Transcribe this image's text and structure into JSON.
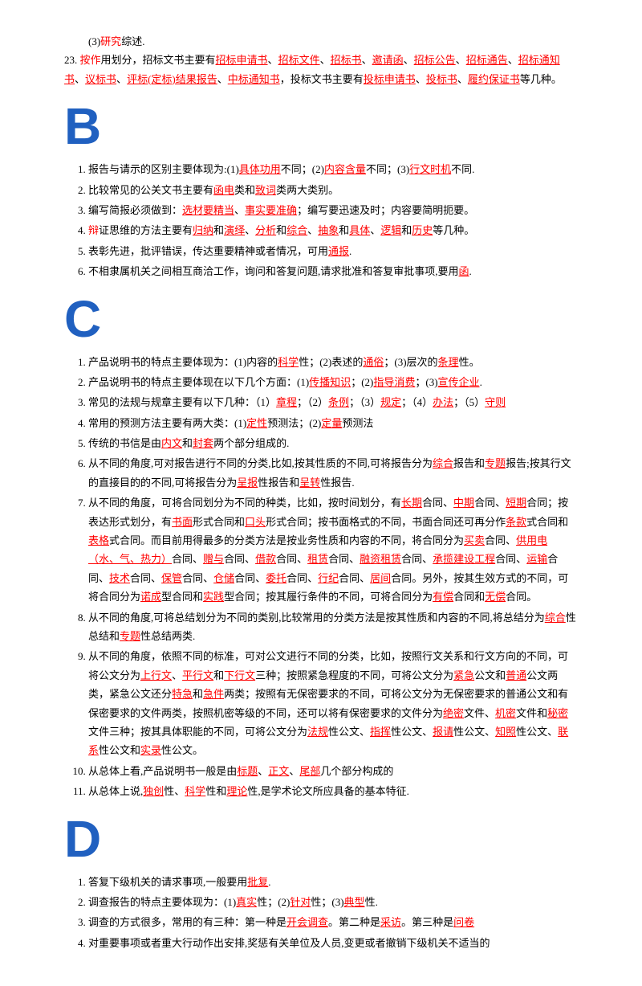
{
  "pre": {
    "line1_prefix": "(3)",
    "line1_r": "研究",
    "line1_suffix": "综述.",
    "item23_num": "23.",
    "item23_p1": "按作",
    "item23_p2": "用划分，招标文书主要有",
    "item23_r1": "招标申请书",
    "sep": "、",
    "item23_r2": "招标文件",
    "item23_r3": "招标书",
    "item23_r4": "邀请函",
    "item23_r5": "招标公告",
    "item23_r6": "招标通告",
    "item23_r7": "招标通知书",
    "item23_r8": "议标书",
    "item23_r9": "评标(定标)结果报告",
    "item23_r10": "中标通知书",
    "item23_p3": "，投标文书主要有",
    "item23_r11": "投标申请书",
    "item23_r12": "投标书",
    "item23_r13": "履约保证书",
    "item23_p4": "等几种。"
  },
  "B": {
    "letter": "B",
    "i1_a": "报告与请示的区别主要体现为:(1)",
    "i1_r1": "具体功用",
    "i1_b": "不同；(2)",
    "i1_r2": "内容含量",
    "i1_c": "不同；(3)",
    "i1_r3": "行文时机",
    "i1_d": "不同.",
    "i2_a": "比较常见的公关文书主要有",
    "i2_r1": "函电",
    "i2_b": "类和",
    "i2_r2": "致词",
    "i2_c": "类两大类别。",
    "i3_a": "编写简报必须做到：",
    "i3_r1": "选材要精当",
    "i3_r2": "事实要准确",
    "i3_b": "；编写要迅速及时；内容要简明扼要。",
    "i4_a": "辩",
    "i4_b": "证思维的方法主要有",
    "i4_r1": "归纳",
    "i4_c": "和",
    "i4_r2": "演绎",
    "i4_r3": "分析",
    "i4_r4": "综合",
    "i4_r5": "抽象",
    "i4_r6": "具体",
    "i4_r7": "逻辑",
    "i4_r8": "历史",
    "i4_d": "等几种。",
    "i5_a": "表彰先进，批评错误，传达重要精神或者情况，可用",
    "i5_r1": "通报",
    "i5_b": ".",
    "i6_a": "不相隶属机关之间相互商洽工作，询问和答复问题,请求批准和答复审批事项,要用",
    "i6_r1": "函",
    "i6_b": "."
  },
  "C": {
    "letter": "C",
    "i1_a": "产品说明书的特点主要体现为：(1)内容的",
    "i1_r1": "科学",
    "i1_b": "性；(2)表述的",
    "i1_r2": "通俗",
    "i1_c": "；(3)层次的",
    "i1_r3": "条理",
    "i1_d": "性。",
    "i2_a": "产品说明书的特点主要体现在以下几个方面：(1)",
    "i2_r1": "传播知识",
    "i2_b": "；(2)",
    "i2_r2": "指导消费",
    "i2_c": "；(3)",
    "i2_r3": "宣传企业",
    "i2_d": ".",
    "i3_a": "常见的法规与规章主要有以下几种：（1）",
    "i3_r1": "章程",
    "i3_b": "；（2）",
    "i3_r2": "条例",
    "i3_c": "；（3）",
    "i3_r3": "规定",
    "i3_d": "；（4）",
    "i3_r4": "办法",
    "i3_e": "；（5）",
    "i3_r5": "守则",
    "i3_f": "",
    "i4_a": "常用的预测方法主要有两大类：(1)",
    "i4_r1": "定性",
    "i4_b": "预测法；(2)",
    "i4_r2": "定量",
    "i4_c": "预测法",
    "i5_a": "传统的书信是由",
    "i5_r1": "内文",
    "i5_b": "和",
    "i5_r2": "封套",
    "i5_c": "两个部分组成的.",
    "i6_a": "从不同的角度,可对报告进行不同的分类,比如,按其性质的不同,可将报告分为",
    "i6_r1": "综合",
    "i6_b": "报告和",
    "i6_r2": "专题",
    "i6_c": "报告;按其行文的直接目的的不同,可将报告分为",
    "i6_r3": "呈报",
    "i6_d": "性报告和",
    "i6_r4": "呈转",
    "i6_e": "性报告.",
    "i7_a": "从不同的角度，可将合同划分为不同的种类，比如，按时间划分，有",
    "i7_r1": "长期",
    "i7_b": "合同、",
    "i7_r2": "中期",
    "i7_c": "合同、",
    "i7_r3": "短期",
    "i7_d": "合同；按表达形式划分，有",
    "i7_r4": "书面",
    "i7_e": "形式合同和",
    "i7_r5": "口头",
    "i7_f": "形式合同；按书面格式的不同，书面合同还可再分作",
    "i7_r6": "条款",
    "i7_g": "式合同和",
    "i7_r7": "表格",
    "i7_h": "式合同。而目前用得最多的分类方法是按业务性质和内容的不同，将合同分为",
    "i7_r8": "买卖",
    "i7_i": "合同、",
    "i7_r9": "供用电（水、气、热力）",
    "i7_j": "合同、",
    "i7_r10": "赠与",
    "i7_k": "合同、",
    "i7_r11": "借款",
    "i7_l": "合同、",
    "i7_r12": "租赁",
    "i7_m": "合同、",
    "i7_r13": "融资租赁",
    "i7_n": "合同、",
    "i7_r14": "承揽建设工程",
    "i7_o": "合同、",
    "i7_r15": "运输",
    "i7_p": "合同、",
    "i7_r16": "技术",
    "i7_q": "合同、",
    "i7_r17": "保管",
    "i7_rr": "合同、",
    "i7_r18": "仓储",
    "i7_s": "合同、",
    "i7_r19": "委托",
    "i7_t": "合同、",
    "i7_r20": "行纪",
    "i7_u": "合同、",
    "i7_r21": "居间",
    "i7_v": "合同。另外，按其生效方式的不同，可将合同分为",
    "i7_r22": "诺成",
    "i7_w": "型合同和",
    "i7_r23": "实践",
    "i7_x": "型合同；按其履行条件的不同，可将合同分为",
    "i7_r24": "有偿",
    "i7_y": "合同和",
    "i7_r25": "无偿",
    "i7_z": "合同。",
    "i8_a": "从不同的角度,可将总结划分为不同的类别,比较常用的分类方法是按其性质和内容的不同,将总结分为",
    "i8_r1": "综合",
    "i8_b": "性总结和",
    "i8_r2": "专题",
    "i8_c": "性总结两类.",
    "i9_a": "从不同的角度，依照不同的标准，可对公文进行不同的分类，比如，按照行文关系和行文方向的不同，可将公文分为",
    "i9_r1": "上行文",
    "i9_b": "、",
    "i9_r2": "平行文",
    "i9_c": "和",
    "i9_r3": "下行文",
    "i9_d": "三种；按照紧急程度的不同，可将公文分为",
    "i9_r4": "紧急",
    "i9_e": "公文和",
    "i9_r5": "普通",
    "i9_f": "公文两类，紧急公文还分",
    "i9_r6": "特急",
    "i9_g": "和",
    "i9_r7": "急件",
    "i9_h": "两类；按照有无保密要求的不同，可将公文分为无保密要求的普通公文和有保密要求的文件两类，按照机密等级的不同，还可以将有保密要求的文件分为",
    "i9_r8": "绝密",
    "i9_i": "文件、",
    "i9_r9": "机密",
    "i9_j": "文件和",
    "i9_r10": "秘密",
    "i9_k": "文件三种；按其具体职能的不同，可将公文分为",
    "i9_r11": "法规",
    "i9_l": "性公文、",
    "i9_r12": "指挥",
    "i9_m": "性公文、",
    "i9_r13": "报请",
    "i9_n": "性公文、",
    "i9_r14": "知照",
    "i9_o": "性公文、",
    "i9_r15": "联系",
    "i9_p": "性公文和",
    "i9_r16": "实录",
    "i9_q": "性公文。",
    "i10_a": "从总体上看,产品说明书一般是由",
    "i10_r1": "标题",
    "i10_b": "、",
    "i10_r2": "正文",
    "i10_c": "、",
    "i10_r3": "尾部",
    "i10_d": "几个部分构成的",
    "i11_a": "从总体上说,",
    "i11_r1": "独创",
    "i11_b": "性、",
    "i11_r2": "科学",
    "i11_c": "性和",
    "i11_r3": "理论",
    "i11_d": "性,是学术论文所应具备的基本特征."
  },
  "D": {
    "letter": "D",
    "i1_a": "答复下级机关的请求事项,一般要用",
    "i1_r1": "批复",
    "i1_b": ".",
    "i2_a": "调查报告的特点主要体现为：(1)",
    "i2_r1": "真实",
    "i2_b": "性；(2)",
    "i2_r2": "针对",
    "i2_c": "性；(3)",
    "i2_r3": "典型",
    "i2_d": "性.",
    "i3_a": "调查的方式很多，常用的有三种：第一种是",
    "i3_r1": "开会调查",
    "i3_b": "。第二种是",
    "i3_r2": "采访",
    "i3_c": "。第三种是",
    "i3_r3": "问卷",
    "i3_d": "",
    "i4_a": "对重要事项或者重大行动作出安排,奖惩有关单位及人员,变更或者撤销下级机关不适当的"
  }
}
